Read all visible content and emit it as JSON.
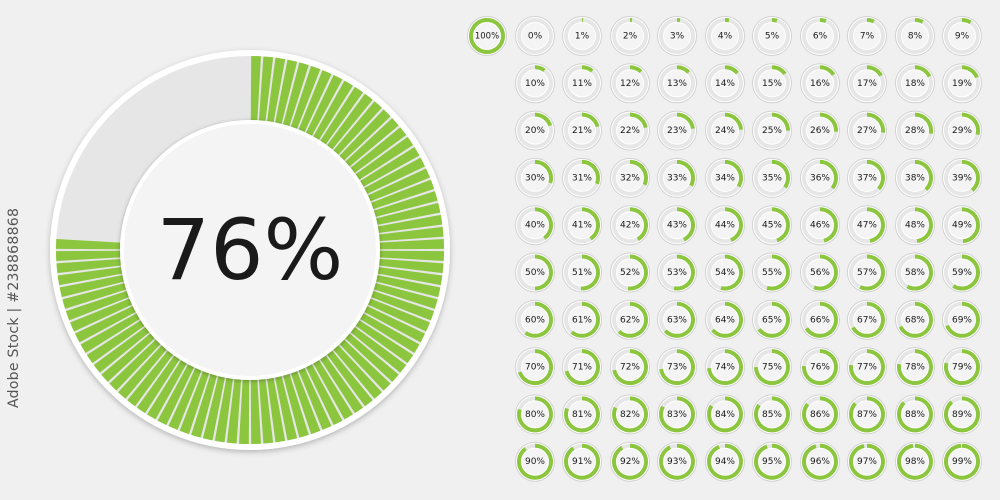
{
  "main_indicator": {
    "label": "76%",
    "value": 76
  },
  "small_indicators": [
    {
      "label": "100%",
      "value": 100
    },
    {
      "label": "0%",
      "value": 0
    },
    {
      "label": "1%",
      "value": 1
    },
    {
      "label": "2%",
      "value": 2
    },
    {
      "label": "3%",
      "value": 3
    },
    {
      "label": "4%",
      "value": 4
    },
    {
      "label": "5%",
      "value": 5
    },
    {
      "label": "6%",
      "value": 6
    },
    {
      "label": "7%",
      "value": 7
    },
    {
      "label": "8%",
      "value": 8
    },
    {
      "label": "9%",
      "value": 9
    },
    {
      "label": "10%",
      "value": 10
    },
    {
      "label": "11%",
      "value": 11
    },
    {
      "label": "12%",
      "value": 12
    },
    {
      "label": "13%",
      "value": 13
    },
    {
      "label": "14%",
      "value": 14
    },
    {
      "label": "15%",
      "value": 15
    },
    {
      "label": "16%",
      "value": 16
    },
    {
      "label": "17%",
      "value": 17
    },
    {
      "label": "18%",
      "value": 18
    },
    {
      "label": "19%",
      "value": 19
    },
    {
      "label": "20%",
      "value": 20
    },
    {
      "label": "21%",
      "value": 21
    },
    {
      "label": "22%",
      "value": 22
    },
    {
      "label": "23%",
      "value": 23
    },
    {
      "label": "24%",
      "value": 24
    },
    {
      "label": "25%",
      "value": 25
    },
    {
      "label": "26%",
      "value": 26
    },
    {
      "label": "27%",
      "value": 27
    },
    {
      "label": "28%",
      "value": 28
    },
    {
      "label": "29%",
      "value": 29
    },
    {
      "label": "30%",
      "value": 30
    },
    {
      "label": "31%",
      "value": 31
    },
    {
      "label": "32%",
      "value": 32
    },
    {
      "label": "33%",
      "value": 33
    },
    {
      "label": "34%",
      "value": 34
    },
    {
      "label": "35%",
      "value": 35
    },
    {
      "label": "36%",
      "value": 36
    },
    {
      "label": "37%",
      "value": 37
    },
    {
      "label": "38%",
      "value": 38
    },
    {
      "label": "39%",
      "value": 39
    },
    {
      "label": "40%",
      "value": 40
    },
    {
      "label": "41%",
      "value": 41
    },
    {
      "label": "42%",
      "value": 42
    },
    {
      "label": "43%",
      "value": 43
    },
    {
      "label": "44%",
      "value": 44
    },
    {
      "label": "45%",
      "value": 45
    },
    {
      "label": "46%",
      "value": 46
    },
    {
      "label": "47%",
      "value": 47
    },
    {
      "label": "48%",
      "value": 48
    },
    {
      "label": "49%",
      "value": 49
    },
    {
      "label": "50%",
      "value": 50
    },
    {
      "label": "51%",
      "value": 51
    },
    {
      "label": "52%",
      "value": 52
    },
    {
      "label": "53%",
      "value": 53
    },
    {
      "label": "54%",
      "value": 54
    },
    {
      "label": "55%",
      "value": 55
    },
    {
      "label": "56%",
      "value": 56
    },
    {
      "label": "57%",
      "value": 57
    },
    {
      "label": "58%",
      "value": 58
    },
    {
      "label": "59%",
      "value": 59
    },
    {
      "label": "60%",
      "value": 60
    },
    {
      "label": "61%",
      "value": 61
    },
    {
      "label": "62%",
      "value": 62
    },
    {
      "label": "63%",
      "value": 63
    },
    {
      "label": "64%",
      "value": 64
    },
    {
      "label": "65%",
      "value": 65
    },
    {
      "label": "66%",
      "value": 66
    },
    {
      "label": "67%",
      "value": 67
    },
    {
      "label": "68%",
      "value": 68
    },
    {
      "label": "69%",
      "value": 69
    },
    {
      "label": "70%",
      "value": 70
    },
    {
      "label": "71%",
      "value": 71
    },
    {
      "label": "72%",
      "value": 72
    },
    {
      "label": "73%",
      "value": 73
    },
    {
      "label": "74%",
      "value": 74
    },
    {
      "label": "75%",
      "value": 75
    },
    {
      "label": "76%",
      "value": 76
    },
    {
      "label": "77%",
      "value": 77
    },
    {
      "label": "78%",
      "value": 78
    },
    {
      "label": "79%",
      "value": 79
    },
    {
      "label": "80%",
      "value": 80
    },
    {
      "label": "81%",
      "value": 81
    },
    {
      "label": "82%",
      "value": 82
    },
    {
      "label": "83%",
      "value": 83
    },
    {
      "label": "84%",
      "value": 84
    },
    {
      "label": "85%",
      "value": 85
    },
    {
      "label": "86%",
      "value": 86
    },
    {
      "label": "87%",
      "value": 87
    },
    {
      "label": "88%",
      "value": 88
    },
    {
      "label": "89%",
      "value": 89
    },
    {
      "label": "90%",
      "value": 90
    },
    {
      "label": "91%",
      "value": 91
    },
    {
      "label": "92%",
      "value": 92
    },
    {
      "label": "93%",
      "value": 93
    },
    {
      "label": "94%",
      "value": 94
    },
    {
      "label": "95%",
      "value": 95
    },
    {
      "label": "96%",
      "value": 96
    },
    {
      "label": "97%",
      "value": 97
    },
    {
      "label": "98%",
      "value": 98
    },
    {
      "label": "99%",
      "value": 99
    }
  ],
  "colors": {
    "background": "#f0f0f0",
    "accent": "#8cc63f",
    "track": "#e6e6e6",
    "ring_border": "#d2d2d2",
    "center": "#f4f4f4",
    "text": "#1a1a1a"
  },
  "watermark": {
    "side_text": "Adobe Stock | #238868868"
  }
}
